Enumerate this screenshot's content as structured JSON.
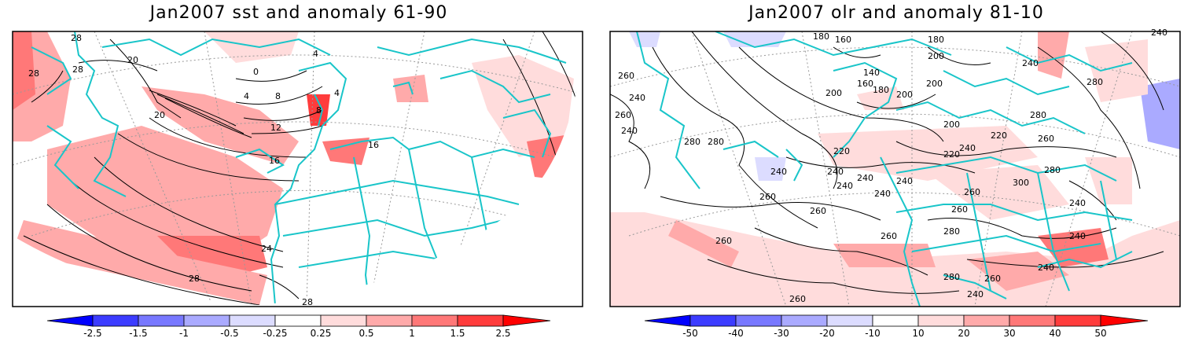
{
  "panels": [
    {
      "title": "Jan2007 sst and anomaly 61-90",
      "contour_labels": [
        "28",
        "28",
        "28",
        "20",
        "20",
        "0",
        "4",
        "4",
        "8",
        "4",
        "8",
        "12",
        "16",
        "16",
        "24",
        "28",
        "28"
      ],
      "colorbar": {
        "labels": [
          "-2.5",
          "-1.5",
          "-1",
          "-0.5",
          "-0.25",
          "0.25",
          "0.5",
          "1",
          "1.5",
          "2.5"
        ],
        "colors": [
          "#0000ff",
          "#3c3cff",
          "#7878ff",
          "#aaaaff",
          "#dcdcff",
          "#ffffff",
          "#ffdcdc",
          "#ffaaaa",
          "#ff7878",
          "#ff3c3c",
          "#ff0000"
        ]
      }
    },
    {
      "title": "Jan2007 olr and anomaly 81-10",
      "contour_labels": [
        "180",
        "160",
        "180",
        "240",
        "200",
        "260",
        "240",
        "260",
        "140",
        "160",
        "200",
        "180",
        "200",
        "200",
        "240",
        "280",
        "280",
        "280",
        "240",
        "220",
        "240",
        "220",
        "240",
        "240",
        "220",
        "240",
        "260",
        "200",
        "260",
        "240",
        "240",
        "260",
        "240",
        "260",
        "260",
        "280",
        "280",
        "300",
        "280",
        "240",
        "260",
        "280",
        "260",
        "240",
        "240",
        "260",
        "240",
        "260"
      ],
      "colorbar": {
        "labels": [
          "-50",
          "-40",
          "-30",
          "-20",
          "-10",
          "10",
          "20",
          "30",
          "40",
          "50"
        ],
        "colors": [
          "#0000ff",
          "#3c3cff",
          "#7878ff",
          "#aaaaff",
          "#dcdcff",
          "#ffffff",
          "#ffdcdc",
          "#ffaaaa",
          "#ff7878",
          "#ff3c3c",
          "#ff0000"
        ]
      }
    }
  ]
}
